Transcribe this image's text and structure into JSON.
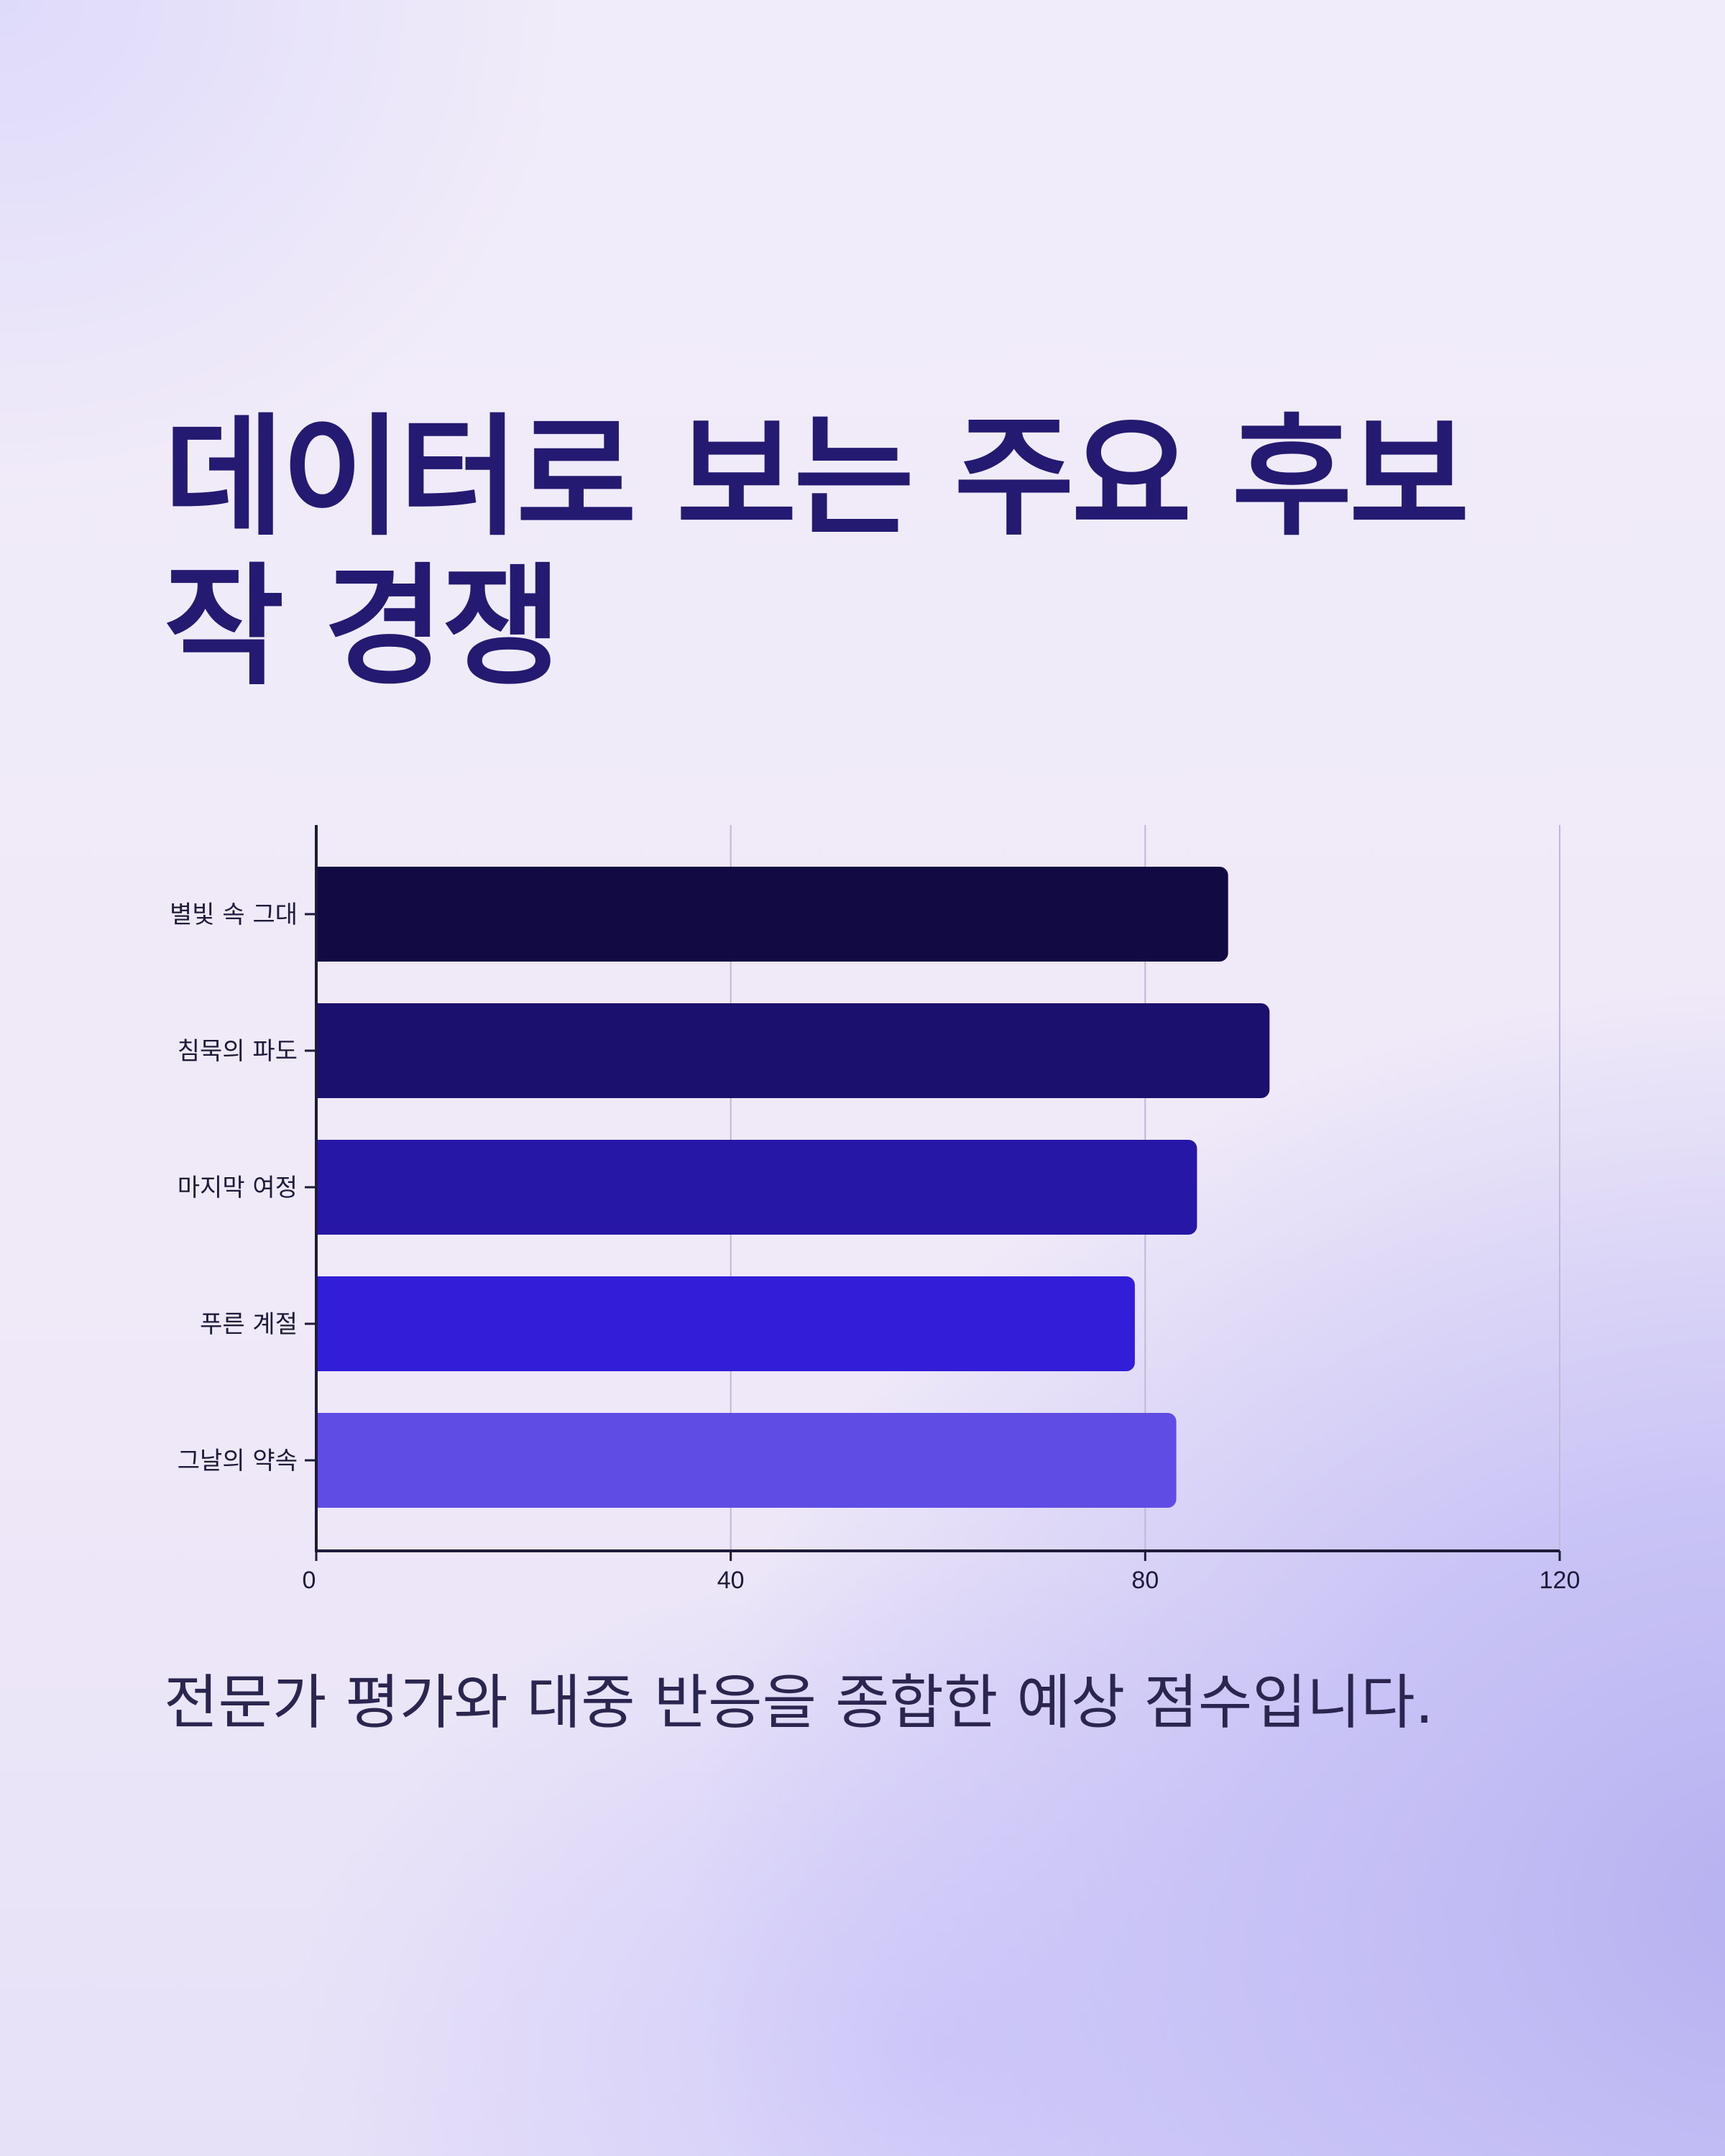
{
  "title": "데이터로 보는 주요 후보작 경쟁",
  "caption": "전문가 평가와 대중 반응을 종합한 예상 점수입니다.",
  "colors": {
    "title": "#241a72",
    "axis": "#1d1a3a",
    "grid": "#c0b8d8",
    "bars": [
      "#120a42",
      "#1c106e",
      "#2717a6",
      "#321dd8",
      "#5e4ce4"
    ]
  },
  "chart_data": {
    "type": "bar",
    "orientation": "horizontal",
    "categories": [
      "별빛 속 그대",
      "침묵의 파도",
      "마지막 여정",
      "푸른 계절",
      "그날의 약속"
    ],
    "values": [
      88,
      92,
      85,
      79,
      83
    ],
    "x_ticks": [
      "0",
      "40",
      "80",
      "120"
    ],
    "xlim": [
      0,
      120
    ],
    "grid": "vertical",
    "legend": "none"
  }
}
